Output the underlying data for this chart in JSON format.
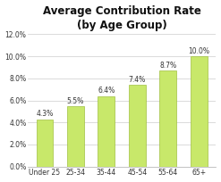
{
  "title_line1": "Average Contribution Rate",
  "title_line2": "(by Age Group)",
  "categories": [
    "Under 25",
    "25-34",
    "35-44",
    "45-54",
    "55-64",
    "65+"
  ],
  "values": [
    4.3,
    5.5,
    6.4,
    7.4,
    8.7,
    10.0
  ],
  "bar_color": "#c8e86a",
  "bar_edge_color": "#a0c040",
  "ylim": [
    0,
    12
  ],
  "yticks": [
    0,
    2,
    4,
    6,
    8,
    10,
    12
  ],
  "ytick_labels": [
    "0.0%",
    "2.0%",
    "4.0%",
    "6.0%",
    "8.0%",
    "10.0%",
    "12.0%"
  ],
  "background_color": "#ffffff",
  "plot_bg_color": "#ffffff",
  "title_fontsize": 8.5,
  "tick_fontsize": 5.5,
  "annotation_fontsize": 5.5,
  "grid_color": "#cccccc",
  "spine_color": "#aaaaaa",
  "text_color": "#333333"
}
